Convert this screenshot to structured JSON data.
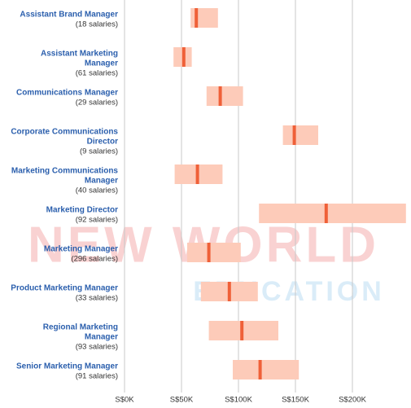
{
  "chart_data": {
    "type": "salary-range",
    "categories": [
      [
        "Assistant Brand Manager"
      ],
      [
        "Assistant Marketing",
        "Manager"
      ],
      [
        "Communications Manager"
      ],
      [
        "Corporate Communications",
        "Director"
      ],
      [
        "Marketing Communications",
        "Manager"
      ],
      [
        "Marketing Director"
      ],
      [
        "Marketing Manager"
      ],
      [
        "Product Marketing Manager"
      ],
      [
        "Regional Marketing",
        "Manager"
      ],
      [
        "Senior Marketing Manager"
      ]
    ],
    "counts": [
      "(18 salaries)",
      "(61 salaries)",
      "(29 salaries)",
      "(9 salaries)",
      "(40 salaries)",
      "(92 salaries)",
      "(296 salaries)",
      "(33 salaries)",
      "(93 salaries)",
      "(91 salaries)"
    ],
    "low": [
      58,
      43,
      72,
      139,
      44,
      118,
      55,
      67,
      74,
      95
    ],
    "high": [
      82,
      59,
      104,
      170,
      86,
      247,
      102,
      117,
      135,
      153
    ],
    "median": [
      63,
      52,
      84,
      149,
      64,
      177,
      74,
      92,
      103,
      119
    ],
    "range_color": "#fdcbb9",
    "median_color": "#ef6038",
    "xlim": [
      0,
      250
    ],
    "xticks": [
      {
        "value": 0,
        "label": "S$0K"
      },
      {
        "value": 50,
        "label": "S$50K"
      },
      {
        "value": 100,
        "label": "S$100K"
      },
      {
        "value": 150,
        "label": "S$150K"
      },
      {
        "value": 200,
        "label": "S$200K"
      }
    ],
    "grid": true,
    "watermark": [
      "NEW WORLD",
      "EDUCATION"
    ]
  }
}
